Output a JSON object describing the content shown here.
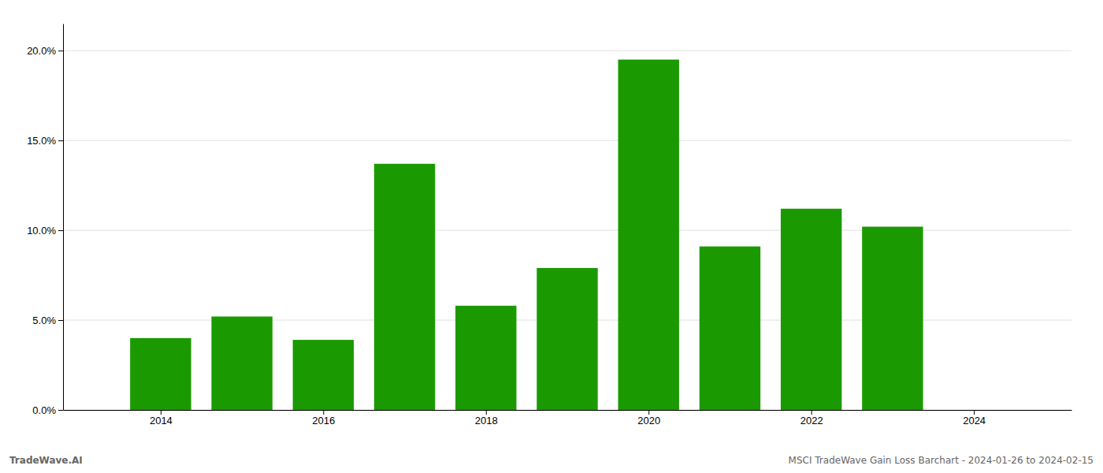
{
  "chart_data": {
    "type": "bar",
    "x": [
      2014,
      2015,
      2016,
      2017,
      2018,
      2019,
      2020,
      2021,
      2022,
      2023
    ],
    "values": [
      0.04,
      0.052,
      0.039,
      0.137,
      0.058,
      0.079,
      0.195,
      0.091,
      0.112,
      0.102
    ],
    "color": "#1a9a00",
    "xlim": [
      2012.8,
      2025.2
    ],
    "xticks": [
      2014,
      2016,
      2018,
      2020,
      2022,
      2024
    ],
    "ylim": [
      0.0,
      0.215
    ],
    "yticks": [
      {
        "value": 0.0,
        "label": "0.0%"
      },
      {
        "value": 0.05,
        "label": "5.0%"
      },
      {
        "value": 0.1,
        "label": "10.0%"
      },
      {
        "value": 0.15,
        "label": "15.0%"
      },
      {
        "value": 0.2,
        "label": "20.0%"
      }
    ],
    "grid": true,
    "annotations": [
      "TradeWave.AI",
      "MSCI TradeWave Gain Loss Barchart - 2024-01-26 to 2024-02-15"
    ]
  }
}
